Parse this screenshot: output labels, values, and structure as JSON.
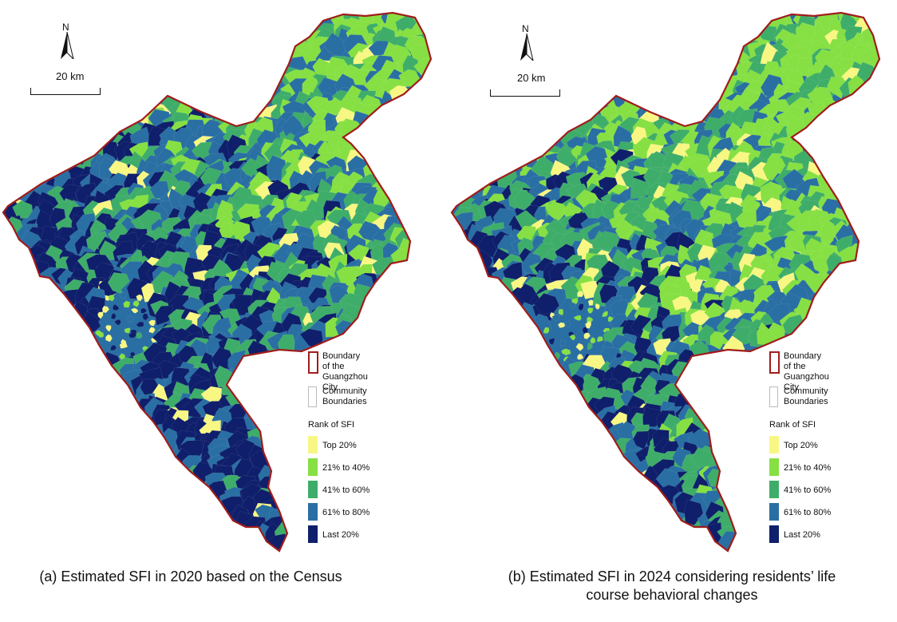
{
  "colors": {
    "top20": "#f8f784",
    "r21_40": "#86e043",
    "r41_60": "#3fad6a",
    "r61_80": "#2a6fa3",
    "last20": "#0f1f6b",
    "boundary": "#a01c1c"
  },
  "icons": {
    "north_arrow": "north-arrow-icon"
  },
  "panels": [
    {
      "north": "N",
      "scale": "20 km",
      "legend": {
        "boundary_city": "Boundary of the\nGuangzhou  City",
        "community": "Community\nBoundaries",
        "title": "Rank of SFI",
        "classes": [
          "Top  20%",
          "21% to 40%",
          "41% to 60%",
          "61% to 80%",
          "Last 20%"
        ]
      },
      "caption": "(a) Estimated SFI in 2020 based on the Census"
    },
    {
      "north": "N",
      "scale": "20 km",
      "legend": {
        "boundary_city": "Boundary of the\nGuangzhou  City",
        "community": "Community\nBoundaries",
        "title": "Rank of SFI",
        "classes": [
          "Top  20%",
          "21% to 40%",
          "41% to 60%",
          "61% to 80%",
          "Last 20%"
        ]
      },
      "caption": "(b) Estimated SFI in 2024 considering residents’ life\ncourse behavioral changes"
    }
  ]
}
